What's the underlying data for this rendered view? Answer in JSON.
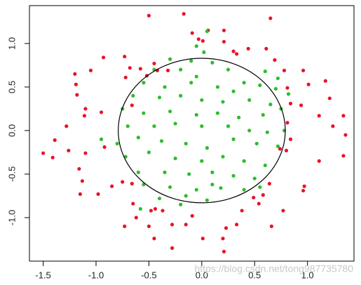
{
  "chart_data": {
    "type": "scatter",
    "xlim": [
      -1.63,
      1.44
    ],
    "ylim": [
      -1.5,
      1.435
    ],
    "xticks": [
      -1.5,
      {
        "value": -1.0,
        "label": "-1.0"
      },
      -0.5,
      {
        "value": 0,
        "label": "0.0"
      },
      0.5,
      {
        "value": 1.0,
        "label": "1.0"
      }
    ],
    "yticks": [
      {
        "value": -1.0,
        "label": "-1.0"
      },
      -0.5,
      {
        "value": 0,
        "label": "0.0"
      },
      0.5,
      {
        "value": 1.0,
        "label": "1.0"
      }
    ],
    "ellipse": {
      "cx": 0,
      "cy": 0,
      "rx": 0.79,
      "ry": 0.83,
      "color": "#000000"
    },
    "watermark": "https://blog.csdn.net/tong987735780",
    "series": [
      {
        "color": "#e8142a",
        "x": [
          -0.5,
          -0.17,
          0.65,
          -0.09,
          -0.03,
          0.01,
          0.06,
          0.21,
          0.21,
          0.3,
          0.33,
          0.44,
          0.61,
          0.69,
          0.78,
          0.96,
          0.81,
          1.01,
          1.17,
          1.21,
          0.94,
          1.11,
          1.34,
          1.24,
          1.36,
          0.81,
          0.84,
          0.74,
          1.11,
          1.34,
          0.97,
          0.96,
          0.64,
          0.58,
          0.54,
          0.49,
          0.77,
          0.66,
          0.38,
          0.33,
          0.23,
          0.2,
          0.21,
          0.01,
          -0.15,
          -0.09,
          -0.28,
          -0.28,
          -0.45,
          -0.5,
          -0.48,
          -0.44,
          -0.37,
          -0.73,
          -0.62,
          -0.65,
          -0.66,
          -0.75,
          -0.85,
          -0.98,
          -1.15,
          -1.13,
          -1.16,
          -1.1,
          -1.26,
          -1.41,
          -1.5,
          -1.39,
          -1.28,
          -1.11,
          -1.1,
          -0.95,
          -0.92,
          -1.19,
          -1.2,
          -1.18,
          -1.05,
          -0.93,
          -0.73,
          -0.68,
          -0.72,
          -0.58,
          -0.52,
          -0.42,
          -0.32,
          -0.45,
          -0.66,
          0.84,
          0.8
        ],
        "y": [
          1.32,
          1.34,
          1.29,
          1.12,
          1.05,
          1.03,
          1.15,
          1.15,
          1.02,
          0.91,
          0.88,
          0.94,
          0.94,
          0.81,
          0.69,
          0.69,
          0.49,
          0.53,
          0.57,
          0.37,
          0.29,
          0.17,
          0.17,
          0.05,
          -0.05,
          0.09,
          -0.1,
          -0.21,
          -0.35,
          -0.29,
          -0.64,
          -0.69,
          -0.61,
          -0.74,
          -0.84,
          -0.77,
          -0.92,
          -1.1,
          -0.92,
          -1.08,
          -1.12,
          -1.24,
          -1.39,
          -1.24,
          -1.08,
          -0.98,
          -1.08,
          -1.35,
          -1.24,
          -1.1,
          -0.92,
          -0.9,
          -0.92,
          -1.1,
          -1.0,
          -0.84,
          -0.61,
          -0.59,
          -0.64,
          -0.73,
          -0.73,
          -0.58,
          -0.44,
          -0.26,
          -0.23,
          -0.31,
          -0.26,
          -0.11,
          0.05,
          0.17,
          0.25,
          0.21,
          -0.19,
          0.53,
          0.65,
          0.41,
          0.69,
          0.84,
          0.85,
          0.72,
          0.61,
          0.71,
          0.63,
          0.69,
          0.69,
          0.77,
          0.29,
          0.31,
          -0.23
        ]
      },
      {
        "color": "#2dbd2d",
        "x": [
          0.05,
          -0.05,
          0.02,
          -0.3,
          -0.1,
          0.1,
          0.25,
          -0.45,
          -0.2,
          0.4,
          0.55,
          0.7,
          -0.55,
          -0.35,
          -0.1,
          0.15,
          0.3,
          -0.65,
          -0.4,
          -0.2,
          0.0,
          0.2,
          0.45,
          0.65,
          0.75,
          -0.75,
          -0.55,
          -0.3,
          -0.05,
          0.15,
          0.35,
          0.58,
          -0.7,
          -0.45,
          -0.25,
          0.25,
          0.45,
          0.62,
          0.78,
          -0.95,
          -0.6,
          -0.38,
          -0.15,
          0.05,
          0.3,
          0.52,
          0.72,
          -0.72,
          -0.5,
          -0.25,
          0.0,
          0.2,
          0.4,
          0.6,
          -0.6,
          -0.35,
          -0.12,
          0.1,
          0.3,
          0.5,
          -0.55,
          -0.3,
          -0.05,
          0.18,
          0.4,
          -0.4,
          -0.15,
          0.05,
          -0.58,
          0.6,
          0.72,
          0.82,
          -0.05,
          0.0,
          -0.8,
          0.1,
          0.55,
          -0.2
        ],
        "y": [
          1.14,
          0.97,
          0.9,
          0.82,
          0.8,
          0.78,
          0.7,
          0.7,
          0.7,
          0.55,
          0.52,
          0.48,
          0.55,
          0.5,
          0.55,
          0.5,
          0.45,
          0.4,
          0.38,
          0.4,
          0.35,
          0.33,
          0.35,
          0.3,
          0.25,
          0.25,
          0.2,
          0.22,
          0.18,
          0.2,
          0.15,
          0.18,
          0.05,
          0.05,
          0.08,
          0.05,
          0.0,
          -0.02,
          0.0,
          -0.1,
          -0.08,
          -0.12,
          -0.15,
          -0.2,
          -0.1,
          -0.15,
          -0.18,
          -0.3,
          -0.25,
          -0.32,
          -0.35,
          -0.3,
          -0.35,
          -0.4,
          -0.48,
          -0.48,
          -0.5,
          -0.48,
          -0.52,
          -0.55,
          -0.62,
          -0.65,
          -0.68,
          -0.66,
          -0.68,
          -0.78,
          -0.75,
          -0.8,
          -0.9,
          0.68,
          0.6,
          0.42,
          0.62,
          0.05,
          -0.15,
          -0.62,
          -0.65,
          -0.85
        ]
      }
    ]
  }
}
